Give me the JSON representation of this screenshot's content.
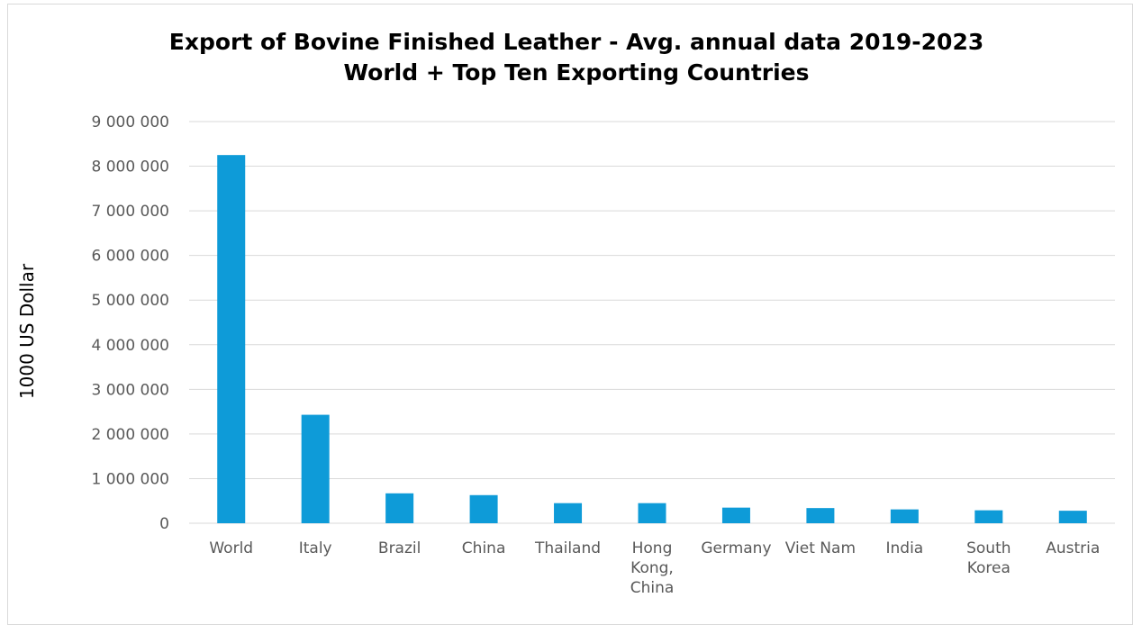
{
  "chart_data": {
    "type": "bar",
    "title_lines": [
      "Export of Bovine Finished Leather - Avg. annual data 2019-2023",
      "World + Top Ten Exporting Countries"
    ],
    "xlabel": "",
    "ylabel": "1000 US Dollar",
    "ylim": [
      0,
      9000000
    ],
    "yticks": [
      0,
      1000000,
      2000000,
      3000000,
      4000000,
      5000000,
      6000000,
      7000000,
      8000000,
      9000000
    ],
    "ytick_labels": [
      "0",
      "1 000 000",
      "2 000 000",
      "3 000 000",
      "4 000 000",
      "5 000 000",
      "6 000 000",
      "7 000 000",
      "8 000 000",
      "9 000 000"
    ],
    "categories": [
      "World",
      "Italy",
      "Brazil",
      "China",
      "Thailand",
      "Hong Kong, China",
      "Germany",
      "Viet Nam",
      "India",
      "South Korea",
      "Austria"
    ],
    "category_label_lines": [
      [
        "World"
      ],
      [
        "Italy"
      ],
      [
        "Brazil"
      ],
      [
        "China"
      ],
      [
        "Thailand"
      ],
      [
        "Hong",
        "Kong,",
        "China"
      ],
      [
        "Germany"
      ],
      [
        "Viet Nam"
      ],
      [
        "India"
      ],
      [
        "South",
        "Korea"
      ],
      [
        "Austria"
      ]
    ],
    "values": [
      8250000,
      2430000,
      670000,
      630000,
      450000,
      450000,
      350000,
      340000,
      310000,
      290000,
      280000
    ],
    "bar_color": "#0e9bd8",
    "grid": true,
    "gridline_color": "#d9d9d9",
    "legend": "none"
  }
}
